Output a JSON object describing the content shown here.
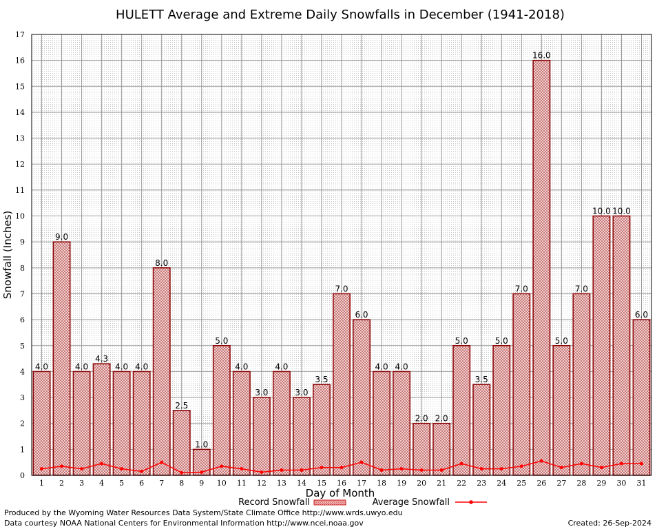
{
  "chart_data": {
    "type": "bar",
    "title": "HULETT Average and Extreme Daily Snowfalls in December (1941-2018)",
    "xlabel": "Day of Month",
    "ylabel": "Snowfall (Inches)",
    "ylim": [
      0,
      17
    ],
    "yticks": [
      "0",
      "1",
      "2",
      "3",
      "4",
      "5",
      "6",
      "7",
      "8",
      "9",
      "10",
      "11",
      "12",
      "13",
      "14",
      "15",
      "16",
      "17"
    ],
    "categories": [
      "1",
      "2",
      "3",
      "4",
      "5",
      "6",
      "7",
      "8",
      "9",
      "10",
      "11",
      "12",
      "13",
      "14",
      "15",
      "16",
      "17",
      "18",
      "19",
      "20",
      "21",
      "22",
      "23",
      "24",
      "25",
      "26",
      "27",
      "28",
      "29",
      "30",
      "31"
    ],
    "series": [
      {
        "name": "Record Snowfall",
        "kind": "bar",
        "values": [
          4.0,
          9.0,
          4.0,
          4.3,
          4.0,
          4.0,
          8.0,
          2.5,
          1.0,
          5.0,
          4.0,
          3.0,
          4.0,
          3.0,
          3.5,
          7.0,
          6.0,
          4.0,
          4.0,
          2.0,
          2.0,
          5.0,
          3.5,
          5.0,
          7.0,
          16.0,
          5.0,
          7.0,
          10.0,
          10.0,
          6.0
        ],
        "labels": [
          "4.0",
          "9.0",
          "4.0",
          "4.3",
          "4.0",
          "4.0",
          "8.0",
          "2.5",
          "1.0",
          "5.0",
          "4.0",
          "3.0",
          "4.0",
          "3.0",
          "3.5",
          "7.0",
          "6.0",
          "4.0",
          "4.0",
          "2.0",
          "2.0",
          "5.0",
          "3.5",
          "5.0",
          "7.0",
          "16.0",
          "5.0",
          "7.0",
          "10.0",
          "10.0",
          "6.0"
        ]
      },
      {
        "name": "Average Snowfall",
        "kind": "line",
        "values": [
          0.25,
          0.35,
          0.25,
          0.45,
          0.25,
          0.15,
          0.5,
          0.1,
          0.12,
          0.35,
          0.25,
          0.12,
          0.2,
          0.2,
          0.3,
          0.3,
          0.5,
          0.2,
          0.25,
          0.2,
          0.2,
          0.45,
          0.25,
          0.25,
          0.35,
          0.55,
          0.3,
          0.45,
          0.3,
          0.45,
          0.45
        ]
      }
    ],
    "grid": true,
    "legend_position": "bottom",
    "colors": {
      "bar_stroke": "#8b0000",
      "bar_fill": "#f2d0d0",
      "line": "#ff0000",
      "grid": "#999999",
      "minor_grid": "#cccccc"
    }
  },
  "footer": {
    "produced_by": "Produced by the Wyoming Water Resources Data System/State Climate Office http://www.wrds.uwyo.edu",
    "data_courtesy": "Data courtesy NOAA National Centers for Environmental Information http://www.ncei.noaa.gov",
    "created": "Created:  26-Sep-2024"
  }
}
